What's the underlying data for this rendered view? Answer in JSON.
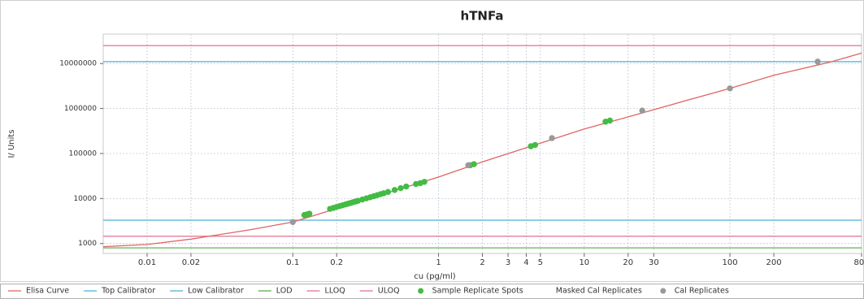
{
  "chart_data": {
    "type": "scatter",
    "title": "hTNFa",
    "x_label": "cu (pg/ml)",
    "y_label": "I/ Units",
    "log_x": true,
    "log_y": true,
    "grid": true,
    "legend": "bottom",
    "xlim": [
      0.005,
      800
    ],
    "ylim": [
      600,
      45000000
    ],
    "xticks": [
      0.01,
      0.02,
      0.1,
      0.2,
      1,
      2,
      3,
      4,
      5,
      10,
      20,
      30,
      100,
      200,
      800
    ],
    "yticks": [
      1000,
      10000,
      100000,
      1000000,
      10000000
    ],
    "series": [
      {
        "name": "Elisa Curve",
        "color": "#e06464",
        "style": "line",
        "x": [
          0.005,
          0.01,
          0.02,
          0.05,
          0.1,
          0.2,
          0.5,
          1,
          2,
          5,
          10,
          20,
          50,
          100,
          200,
          500,
          800
        ],
        "values": [
          850,
          950,
          1250,
          2000,
          3000,
          6000,
          15000,
          30000,
          65000,
          170000,
          350000,
          650000,
          1500000,
          2800000,
          5500000,
          11000000,
          17000000
        ]
      },
      {
        "name": "Top Calibrator",
        "color": "#4ab0d8",
        "style": "hline",
        "values": [
          11000000
        ]
      },
      {
        "name": "Low Calibrator",
        "color": "#4ab0d8",
        "style": "hline",
        "values": [
          3300
        ]
      },
      {
        "name": "LOD",
        "color": "#55aa44",
        "style": "hline",
        "values": [
          800
        ]
      },
      {
        "name": "LLOQ",
        "color": "#e07090",
        "style": "hline",
        "values": [
          1450
        ]
      },
      {
        "name": "ULOQ",
        "color": "#e07090",
        "style": "hline",
        "values": [
          25000000
        ]
      },
      {
        "name": "Sample Replicate Spots",
        "color": "#44bb44",
        "style": "points",
        "x": [
          0.12,
          0.125,
          0.13,
          0.18,
          0.19,
          0.2,
          0.21,
          0.22,
          0.23,
          0.24,
          0.25,
          0.26,
          0.27,
          0.28,
          0.3,
          0.32,
          0.34,
          0.36,
          0.38,
          0.4,
          0.42,
          0.45,
          0.5,
          0.55,
          0.6,
          0.7,
          0.75,
          0.8,
          1.65,
          1.75,
          4.3,
          4.6,
          14,
          15
        ],
        "values": [
          4300,
          4450,
          4600,
          5900,
          6200,
          6500,
          6800,
          7100,
          7400,
          7700,
          8000,
          8300,
          8600,
          8900,
          9500,
          10100,
          10700,
          11300,
          11900,
          12500,
          13100,
          14000,
          15500,
          17000,
          18500,
          21000,
          22000,
          23500,
          55000,
          58000,
          145000,
          155000,
          510000,
          540000
        ]
      },
      {
        "name": "Masked Cal Replicates",
        "color": "#ffffff",
        "style": "points",
        "x": [],
        "values": []
      },
      {
        "name": "Cal Replicates",
        "color": "#999999",
        "style": "points",
        "x": [
          0.1,
          1.6,
          6,
          25,
          100,
          400
        ],
        "values": [
          3000,
          55000,
          220000,
          900000,
          2800000,
          11000000
        ]
      }
    ]
  }
}
